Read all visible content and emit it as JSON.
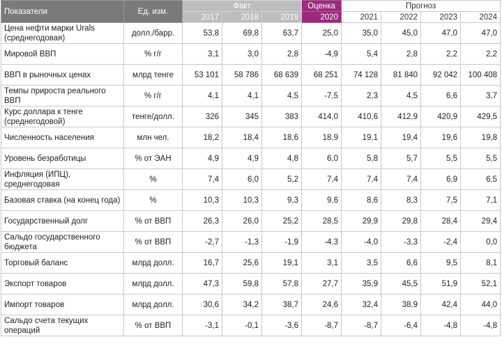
{
  "header": {
    "indicators_label": "Показатели",
    "unit_label": "Ед. изм.",
    "fact_label": "Факт",
    "estimate_label": "Оценка",
    "forecast_label": "Прогноз",
    "years": [
      "2017",
      "2018",
      "2019",
      "2020",
      "2021",
      "2022",
      "2023",
      "2024"
    ]
  },
  "rows": [
    {
      "name": "Цена нефти марки Urals (среднегодовая)",
      "unit": "долл./барр.",
      "values": [
        "53,8",
        "69,8",
        "63,7",
        "25,0",
        "35,0",
        "45,0",
        "47,0",
        "47,0"
      ]
    },
    {
      "name": "Мировой ВВП",
      "unit": "% г/г",
      "values": [
        "3,1",
        "3,0",
        "2,8",
        "-4,9",
        "5,4",
        "2,8",
        "2,2",
        "2,2"
      ]
    },
    {
      "name": "ВВП в рыночных ценах",
      "unit": "млрд тенге",
      "values": [
        "53 101",
        "58 786",
        "68 639",
        "68 251",
        "74 128",
        "81 840",
        "92 042",
        "100 408"
      ]
    },
    {
      "name": "Темпы прироста реального ВВП",
      "unit": "% г/г",
      "values": [
        "4,1",
        "4,1",
        "4,5",
        "-7,5",
        "2,3",
        "4,5",
        "6,6",
        "3,7"
      ]
    },
    {
      "name": "Курс доллара к тенге (среднегодовой)",
      "unit": "тенге/долл.",
      "values": [
        "326",
        "345",
        "383",
        "414,0",
        "410,6",
        "412,9",
        "420,9",
        "429,5"
      ]
    },
    {
      "name": "Численность населения",
      "unit": "млн чел.",
      "values": [
        "18,2",
        "18,4",
        "18,6",
        "18,9",
        "19,1",
        "19,4",
        "19,6",
        "19,8"
      ]
    },
    {
      "name": "Уровень безработицы",
      "unit": "% от ЭАН",
      "values": [
        "4,9",
        "4,9",
        "4,8",
        "6,0",
        "5,8",
        "5,7",
        "5,5",
        "5,5"
      ]
    },
    {
      "name": "Инфляция (ИПЦ), среднегодовая",
      "unit": "%",
      "values": [
        "7,4",
        "6,0",
        "5,2",
        "7,4",
        "7,4",
        "7,4",
        "6,9",
        "6,5"
      ]
    },
    {
      "name": "Базовая ставка (на конец года)",
      "unit": "%",
      "values": [
        "10,3",
        "10,3",
        "9,3",
        "9,6",
        "8,6",
        "8,3",
        "7,5",
        "7,1"
      ]
    },
    {
      "name": "Государственный долг",
      "unit": "% от ВВП",
      "values": [
        "26,3",
        "26,0",
        "25,2",
        "28,5",
        "29,9",
        "29,8",
        "28,4",
        "29,4"
      ]
    },
    {
      "name": "Сальдо государственного бюджета",
      "unit": "% от ВВП",
      "values": [
        "-2,7",
        "-1,3",
        "-1,9",
        "-4,3",
        "-4,0",
        "-3,3",
        "-2,4",
        "0,0"
      ]
    },
    {
      "name": "Торговый баланс",
      "unit": "млрд долл.",
      "values": [
        "16,7",
        "25,6",
        "19,1",
        "3,1",
        "3,5",
        "6,6",
        "9,5",
        "8,1"
      ]
    },
    {
      "name": "Экспорт товаров",
      "unit": "млрд долл.",
      "values": [
        "47,3",
        "59,8",
        "57,8",
        "27,7",
        "35,9",
        "45,5",
        "51,9",
        "52,1"
      ]
    },
    {
      "name": "Импорт товаров",
      "unit": "млрд долл.",
      "values": [
        "30,6",
        "34,2",
        "38,7",
        "24,6",
        "32,4",
        "38,9",
        "42,4",
        "44,0"
      ]
    },
    {
      "name": "Сальдо счета текущих операций",
      "unit": "% от ВВП",
      "values": [
        "-3,1",
        "-0,1",
        "-3,6",
        "-8,7",
        "-8,7",
        "-6,4",
        "-4,8",
        "-4,8"
      ]
    }
  ]
}
